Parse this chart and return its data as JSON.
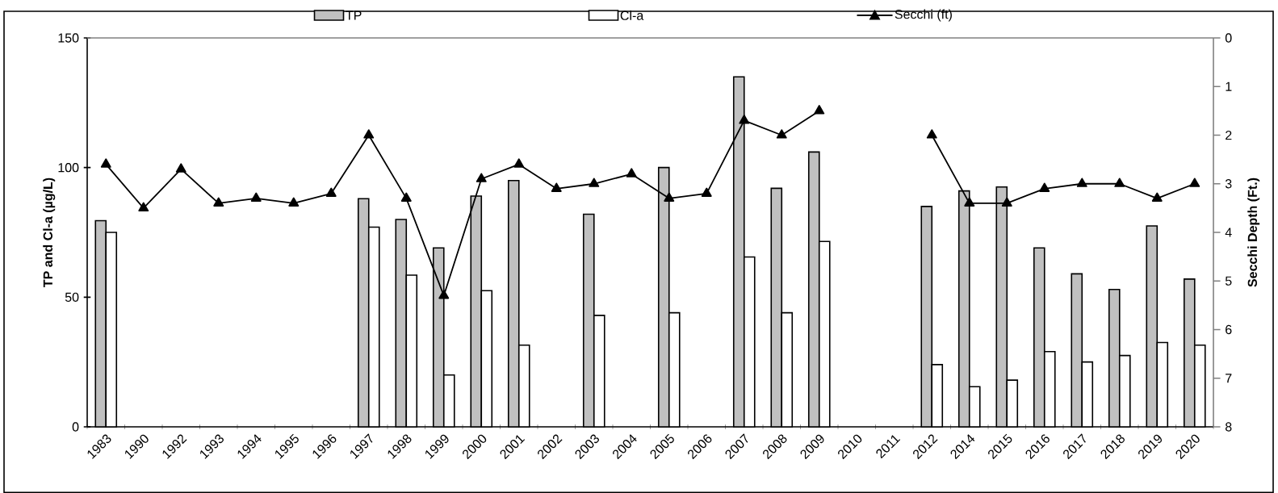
{
  "chart_data": {
    "type": "bar",
    "ylabel": "TP and Cl-a (µg/L)",
    "y2label": "Secchi Depth (Ft.)",
    "categories": [
      "1983",
      "1990",
      "1992",
      "1993",
      "1994",
      "1995",
      "1996",
      "1997",
      "1998",
      "1999",
      "2000",
      "2001",
      "2002",
      "2003",
      "2004",
      "2005",
      "2006",
      "2007",
      "2008",
      "2009",
      "2010",
      "2011",
      "2012",
      "2014",
      "2015",
      "2016",
      "2017",
      "2018",
      "2019",
      "2020"
    ],
    "series": [
      {
        "name": "TP",
        "color": "#c0c0c0",
        "values": [
          79.5,
          null,
          null,
          null,
          null,
          null,
          null,
          88,
          80,
          69,
          89,
          95,
          null,
          82,
          null,
          100,
          null,
          135,
          92,
          106,
          null,
          null,
          85,
          91,
          92.5,
          69,
          59,
          53,
          77.5,
          57
        ]
      },
      {
        "name": "Cl-a",
        "color": "#ffffff",
        "values": [
          75,
          null,
          null,
          null,
          null,
          null,
          null,
          77,
          58.5,
          20,
          52.5,
          31.5,
          null,
          43,
          null,
          44,
          null,
          65.5,
          44,
          71.5,
          null,
          null,
          24,
          15.5,
          18,
          29,
          25,
          27.5,
          32.5,
          31.5
        ]
      },
      {
        "name": "Secchi (ft)",
        "type": "line",
        "axis": "y2",
        "color": "#000000",
        "marker": "triangle",
        "values": [
          2.6,
          3.5,
          2.7,
          3.4,
          3.3,
          3.4,
          3.2,
          2.0,
          3.3,
          5.3,
          2.9,
          2.6,
          3.1,
          3.0,
          2.8,
          3.3,
          3.2,
          1.7,
          2.0,
          1.5,
          null,
          null,
          2.0,
          3.4,
          3.4,
          3.1,
          3.0,
          3.0,
          3.3,
          3.0
        ]
      }
    ],
    "ylim": [
      0,
      150
    ],
    "yticks": [
      0,
      50,
      100,
      150
    ],
    "y2lim": [
      8,
      0
    ],
    "y2ticks": [
      0,
      1,
      2,
      3,
      4,
      5,
      6,
      7,
      8
    ],
    "legend": "top"
  }
}
